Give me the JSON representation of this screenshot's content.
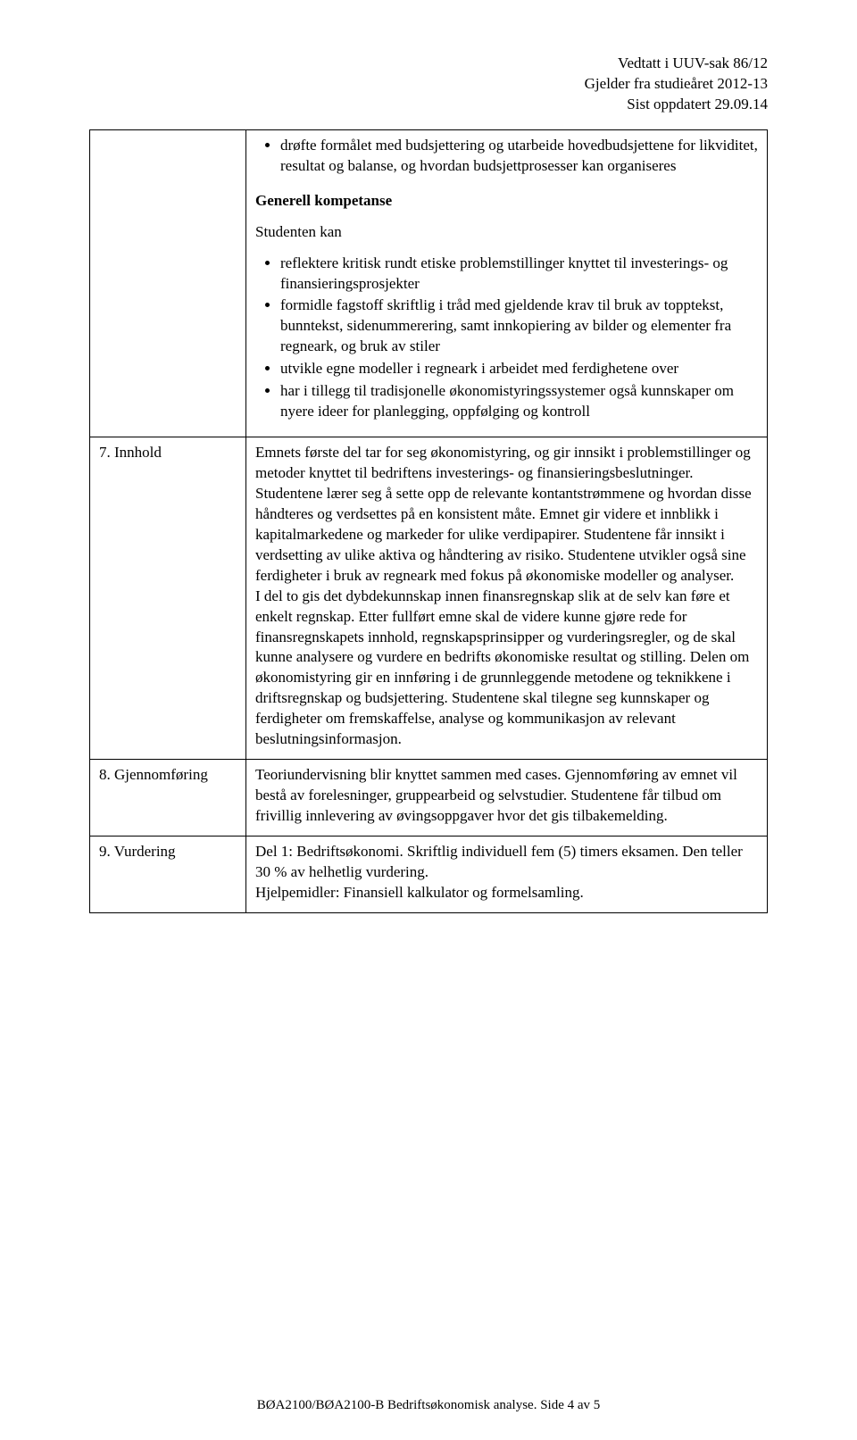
{
  "meta": {
    "line1": "Vedtatt i UUV-sak 86/12",
    "line2": "Gjelder fra studieåret 2012-13",
    "line3": "Sist oppdatert 29.09.14"
  },
  "row0": {
    "bullets_top": [
      "drøfte formålet med budsjettering og utarbeide hovedbudsjettene for likviditet, resultat og balanse, og hvordan budsjettprosesser kan organiseres"
    ],
    "heading_bold": "Generell kompetanse",
    "sub_text": "Studenten kan",
    "bullets_bottom": [
      "reflektere kritisk rundt etiske problemstillinger knyttet til investerings- og finansieringsprosjekter",
      "formidle fagstoff skriftlig i tråd med gjeldende krav til bruk av topptekst, bunntekst, sidenummerering, samt innkopiering av bilder og elementer fra regneark, og bruk av stiler",
      "utvikle egne modeller i regneark i arbeidet med ferdighetene over",
      "har i tillegg til tradisjonelle økonomistyringssystemer også kunnskaper om nyere ideer for planlegging, oppfølging og kontroll"
    ]
  },
  "row1": {
    "label": "7. Innhold",
    "body": "Emnets første del tar for seg økonomistyring, og gir innsikt i problemstillinger og metoder knyttet til bedriftens investerings- og finansieringsbeslutninger. Studentene lærer seg å sette opp de relevante kontantstrømmene og hvordan disse håndteres og verdsettes på en konsistent måte. Emnet gir videre et innblikk i kapitalmarkedene og markeder for ulike verdipapirer. Studentene får innsikt i verdsetting av ulike aktiva og håndtering av risiko. Studentene utvikler også sine ferdigheter i bruk av regneark med fokus på økonomiske modeller og analyser.",
    "body2": "I del to gis det dybdekunnskap innen finansregnskap slik at de selv kan føre et enkelt regnskap. Etter fullført emne skal de videre kunne gjøre rede for finansregnskapets innhold, regnskapsprinsipper og vurderingsregler, og de skal kunne analysere og vurdere en bedrifts økonomiske resultat og stilling. Delen om økonomistyring gir en innføring i de grunnleggende metodene og teknikkene i driftsregnskap og budsjettering. Studentene skal tilegne seg kunnskaper og ferdigheter om fremskaffelse, analyse og kommunikasjon av relevant beslutningsinformasjon."
  },
  "row2": {
    "label": "8. Gjennomføring",
    "body": "Teoriundervisning blir knyttet sammen med cases. Gjennomføring av emnet vil bestå av forelesninger, gruppearbeid og selvstudier. Studentene får tilbud om frivillig innlevering av øvingsoppgaver hvor det gis tilbakemelding."
  },
  "row3": {
    "label": "9. Vurdering",
    "body1": "Del 1: Bedriftsøkonomi. Skriftlig individuell fem (5) timers eksamen. Den teller 30 % av helhetlig vurdering.",
    "body2": "Hjelpemidler: Finansiell kalkulator og formelsamling."
  },
  "footer": "BØA2100/BØA2100-B Bedriftsøkonomisk analyse. Side 4 av 5"
}
